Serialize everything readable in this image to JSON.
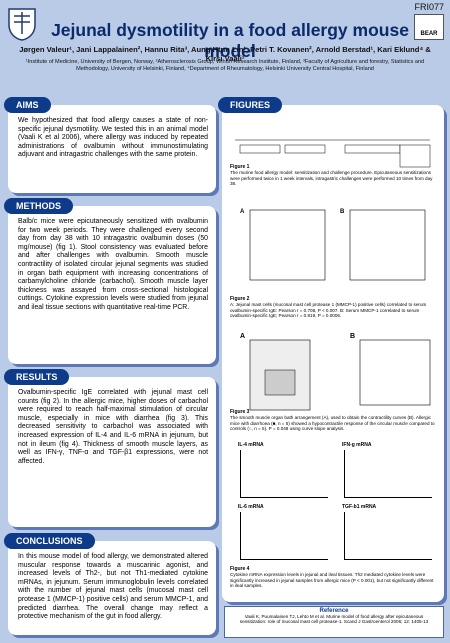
{
  "header": {
    "code": "FRI077",
    "logo_right": "BEAR",
    "title": "Jejunal dysmotility in a food allergy mouse model",
    "authors": "Jørgen Valeur¹, Jani Lappalainen², Hannu Rita³, Aung Htun Lin¹, Petri T. Kovanen², Arnold Berstad¹, Kari Eklund⁴ & Kirsi Vaali¹",
    "affiliations": "¹Institute of Medicine, University of Bergen, Norway, ²Atherosclerosis Group, Wihuri Research Institute, Finland, ³Faculty of Agriculture and forestry, Statistics and Methodology, University of Helsinki, Finland, ⁴Department of Rheumatology, Helsinki University Central Hospital, Finland"
  },
  "sections": [
    {
      "title": "AIMS",
      "text": "We hypothesized that food allergy causes a state of non-specific jejunal dysmotility. We tested this in an animal model (Vaali K et al 2006), where allergy was induced by repeated administrations of ovalbumin without immunostimulating adjuvant and intragastric challenges with the same protein."
    },
    {
      "title": "METHODS",
      "text": "Balb/c mice were epicutaneously sensitized with ovalbumin for two week periods. They were challenged every second day from day 38 with 10 intragastric ovalbumin doses (50 mg/mouse) (fig 1). Stool consistency was evaluated before and after challenges with ovalbumin. Smooth muscle contractility of isolated circular jejunal segments was studied in organ bath equipment with increasing concentrations of carbamylcholine chloride (carbachol). Smooth muscle layer thickness was assayed from cross-sectional histological cuttings. Cytokine expression levels were studied from jejunal and ileal tissue sections with quantitative real-time PCR."
    },
    {
      "title": "RESULTS",
      "text": "Ovalbumin-specific IgE correlated with jejunal mast cell counts (fig 2). In the allergic mice, higher doses of carbachol were required to reach half-maximal stimulation of circular muscle, especially in mice with diarrhea (fig 3). This decreased sensitivity to carbachol was associated with increased expression of IL-4 and IL-6 mRNA in jejunum, but not in ileum (fig 4). Thickness of smooth muscle layers, as well as IFN-γ, TNF-α and TGF-β1 expressions, were not affected."
    },
    {
      "title": "CONCLUSIONS",
      "text": "In this mouse model of food allergy, we demonstrated altered muscular response towards a muscarinic agonist, and increased levels of Th2-, but not Th1-mediated cytokine mRNAs, in jejunum. Serum immunoglobulin levels correlated with the number of jejunal mast cells (mucosal mast cell protease 1 (MMCP-1) positive cells) and serum MMCP-1, and predicted diarrhea. The overall change may reflect a protective mechanism of the gut in food allergy."
    }
  ],
  "figures": {
    "title": "FIGURES",
    "items": [
      {
        "label": "Figure 1",
        "caption": "The murine food allergy model: sensitization and challenge procedure. Epicutaneous sensitizations were performed twice in 1 week intervals, intragastric challenges were performed 10 times from day 38."
      },
      {
        "label": "Figure 2",
        "caption": "A: Jejunal mast cells (mucosal mast cell protease 1 (MMCP-1) positive cells) correlated to serum ovalbumin-specific IgE: Pearson r = 0.708, P < 0.007. B: Serum MMCP-1 correlated to serum ovalbumin-specific IgE; Pearson r = 0.819, P = 0.0006."
      },
      {
        "label": "Figure 3",
        "caption": "The smooth muscle organ bath arrangement (A), used to obtain the contractility curves (B). Allergic mice with diarrhoea (■, n = 5) showed a hypocontractile response of the circular muscle compared to controls (○, n = 5). P = 0.048 using curve slope analysis."
      },
      {
        "label": "Figure 4",
        "caption": "Cytokine mRNA expression levels in jejunal and ileal tissues. Th2 mediated cytokine levels were significantly increased in jejunal samples from allergic mice (P < 0.001), but not significantly different in ileal samples."
      }
    ],
    "panels": [
      "IL-4 mRNA",
      "IFN-g mRNA",
      "IL-6 mRNA",
      "TGF-b1 mRNA"
    ]
  },
  "reference": {
    "title": "Reference",
    "text": "Vaali K, Puumalainen TJ, Lehto M et al. Murine model of food allergy after epicutaneous sensitization: role of mucosal mast cell protease-1. Scand J Gastroenterol 2006; 12: 1405-13"
  }
}
